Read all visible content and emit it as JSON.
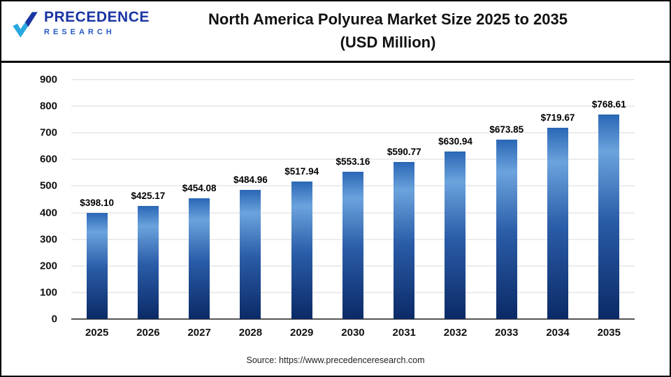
{
  "header": {
    "logo": {
      "line1": "PRECEDENCE",
      "line2": "RESEARCH"
    },
    "title_line1": "North America Polyurea Market Size 2025 to 2035",
    "title_line2": "(USD Million)"
  },
  "chart_data": {
    "type": "bar",
    "title": "North America Polyurea Market Size 2025 to 2035 (USD Million)",
    "categories": [
      "2025",
      "2026",
      "2027",
      "2028",
      "2029",
      "2030",
      "2031",
      "2032",
      "2033",
      "2034",
      "2035"
    ],
    "values": [
      398.1,
      425.17,
      454.08,
      484.96,
      517.94,
      553.16,
      590.77,
      630.94,
      673.85,
      719.67,
      768.61
    ],
    "value_labels": [
      "$398.10",
      "$425.17",
      "$454.08",
      "$484.96",
      "$517.94",
      "$553.16",
      "$590.77",
      "$630.94",
      "$673.85",
      "$719.67",
      "$768.61"
    ],
    "xlabel": "",
    "ylabel": "",
    "ylim": [
      0,
      900
    ],
    "ytick_step": 100,
    "grid": true,
    "legend": "none",
    "bar_color_top": "#2a67b5",
    "bar_color_bottom": "#0b2a66"
  },
  "footer": {
    "source": "Source: https://www.precedenceresearch.com"
  }
}
